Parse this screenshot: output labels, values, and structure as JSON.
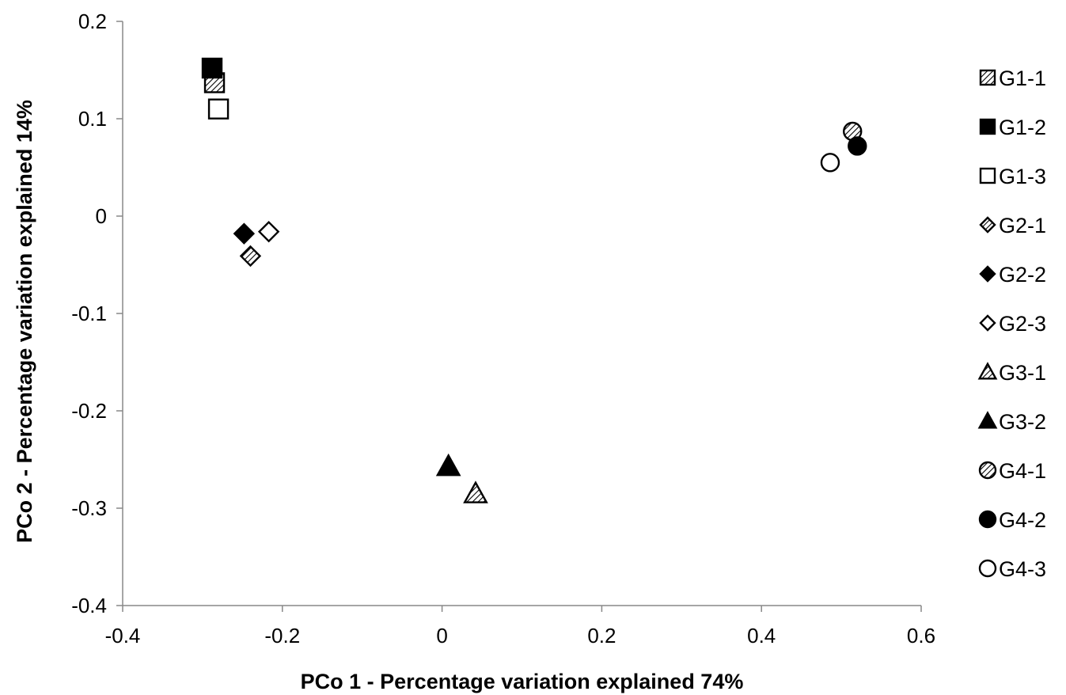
{
  "chart_data": {
    "type": "scatter",
    "xlabel": "PCo 1 - Percentage variation explained 74%",
    "ylabel": "PCo 2 - Percentage variation explained 14%",
    "xlim": [
      -0.4,
      0.6
    ],
    "ylim": [
      -0.4,
      0.2
    ],
    "x_ticks": [
      -0.4,
      -0.2,
      0,
      0.2,
      0.4,
      0.6
    ],
    "x_tick_labels": [
      "-0.4",
      "-0.2",
      "0",
      "0.2",
      "0.4",
      "0.6"
    ],
    "y_ticks": [
      0.2,
      0.1,
      0,
      -0.1,
      -0.2,
      -0.3,
      -0.4
    ],
    "y_tick_labels": [
      "0.2",
      "0.1",
      "0",
      "-0.1",
      "-0.2",
      "-0.3",
      "-0.4"
    ],
    "grid": false,
    "legend_position": "right",
    "series": [
      {
        "name": "G1-1",
        "marker": "square",
        "fill": "hatch",
        "x": [
          -0.285
        ],
        "y": [
          0.137
        ]
      },
      {
        "name": "G1-2",
        "marker": "square",
        "fill": "black",
        "x": [
          -0.288
        ],
        "y": [
          0.152
        ]
      },
      {
        "name": "G1-3",
        "marker": "square",
        "fill": "white",
        "x": [
          -0.28
        ],
        "y": [
          0.11
        ]
      },
      {
        "name": "G2-1",
        "marker": "diamond",
        "fill": "hatch",
        "x": [
          -0.24
        ],
        "y": [
          -0.041
        ]
      },
      {
        "name": "G2-2",
        "marker": "diamond",
        "fill": "black",
        "x": [
          -0.248
        ],
        "y": [
          -0.018
        ]
      },
      {
        "name": "G2-3",
        "marker": "diamond",
        "fill": "white",
        "x": [
          -0.217
        ],
        "y": [
          -0.016
        ]
      },
      {
        "name": "G3-1",
        "marker": "triangle",
        "fill": "hatch",
        "x": [
          0.042
        ],
        "y": [
          -0.285
        ]
      },
      {
        "name": "G3-2",
        "marker": "triangle",
        "fill": "black",
        "x": [
          0.008
        ],
        "y": [
          -0.257
        ]
      },
      {
        "name": "G4-1",
        "marker": "circle",
        "fill": "hatch",
        "x": [
          0.514
        ],
        "y": [
          0.087
        ]
      },
      {
        "name": "G4-2",
        "marker": "circle",
        "fill": "black",
        "x": [
          0.52
        ],
        "y": [
          0.072
        ]
      },
      {
        "name": "G4-3",
        "marker": "circle",
        "fill": "white",
        "x": [
          0.486
        ],
        "y": [
          0.055
        ]
      }
    ]
  }
}
